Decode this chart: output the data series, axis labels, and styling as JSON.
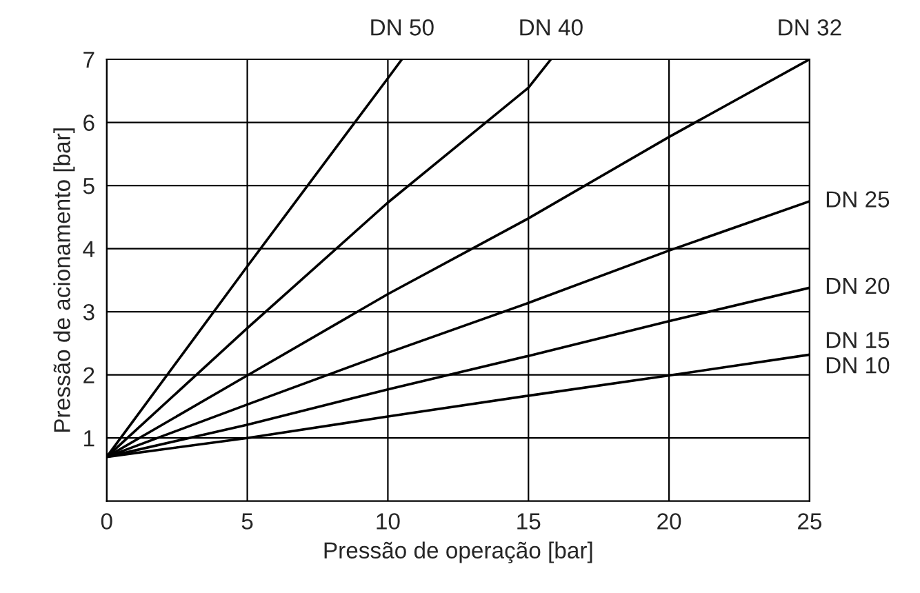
{
  "chart_data": {
    "type": "line",
    "xlabel": "Pressão de operação [bar]",
    "ylabel": "Pressão de acionamento [bar]",
    "xlim": [
      0,
      25
    ],
    "ylim": [
      0,
      7
    ],
    "xticks": [
      0,
      5,
      10,
      15,
      20,
      25
    ],
    "yticks": [
      1,
      2,
      3,
      4,
      5,
      6,
      7
    ],
    "grid": true,
    "legend": false,
    "marker": "none",
    "line_style": "solid",
    "series": [
      {
        "name": "DN 50",
        "color": "#000000",
        "x": [
          0,
          5,
          10,
          10.5
        ],
        "values": [
          0.7,
          3.72,
          6.7,
          7
        ]
      },
      {
        "name": "DN 40",
        "color": "#000000",
        "x": [
          0,
          5,
          10,
          15,
          15.8
        ],
        "values": [
          0.7,
          2.74,
          4.73,
          6.55,
          7
        ]
      },
      {
        "name": "DN 32",
        "color": "#000000",
        "x": [
          0,
          5,
          10,
          15,
          20,
          25
        ],
        "values": [
          0.7,
          1.99,
          3.28,
          4.48,
          5.77,
          7
        ]
      },
      {
        "name": "DN 25",
        "color": "#000000",
        "x": [
          0,
          5,
          10,
          15,
          20,
          25
        ],
        "values": [
          0.7,
          1.53,
          2.35,
          3.14,
          3.97,
          4.75
        ]
      },
      {
        "name": "DN 20",
        "color": "#000000",
        "x": [
          0,
          5,
          10,
          15,
          20,
          25
        ],
        "values": [
          0.7,
          1.21,
          1.77,
          2.3,
          2.85,
          3.38
        ]
      },
      {
        "name": "DN 15",
        "color": "#000000",
        "x": [
          0,
          5,
          10,
          15,
          20,
          25
        ],
        "values": [
          0.7,
          1.0,
          1.34,
          1.67,
          1.99,
          2.32
        ]
      }
    ],
    "annotations": [
      {
        "text": "DN 10",
        "x": 25,
        "y": 2.32
      }
    ]
  }
}
